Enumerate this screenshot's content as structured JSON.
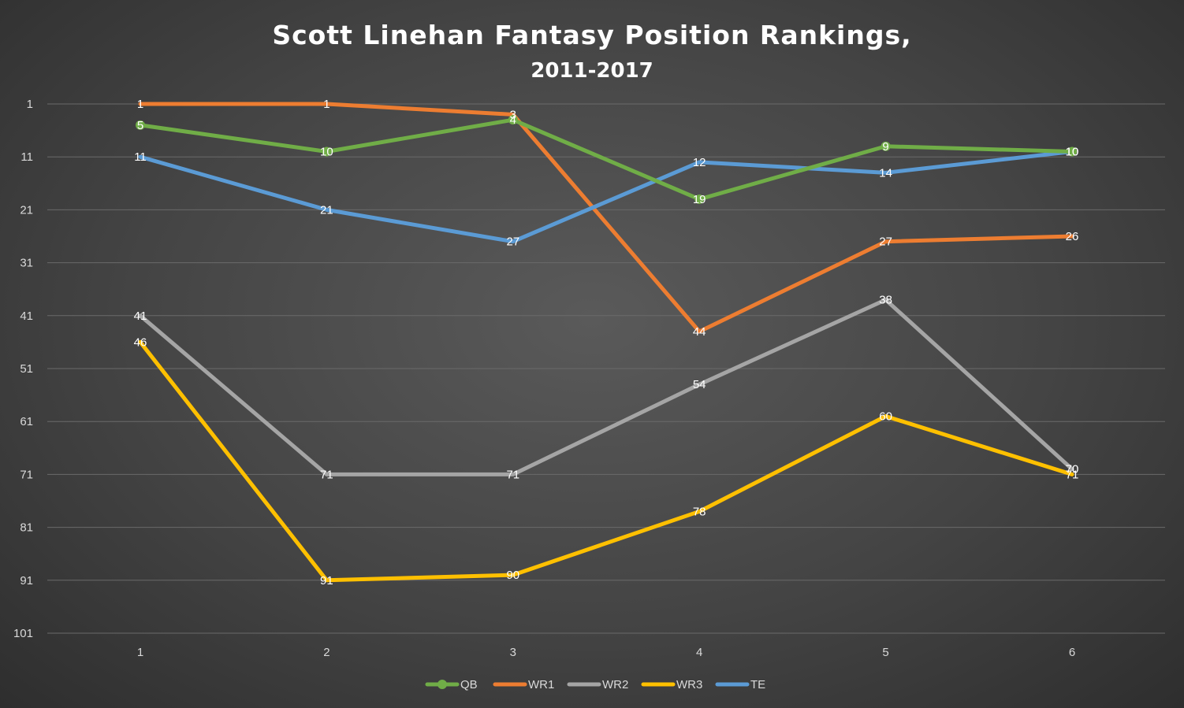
{
  "chart_data": {
    "type": "line",
    "title": "Scott Linehan Fantasy Position Rankings,",
    "subtitle": "2011-2017",
    "xlabel": "",
    "ylabel": "",
    "categories": [
      "1",
      "2",
      "3",
      "4",
      "5",
      "6"
    ],
    "y_ticks": [
      "1",
      "11",
      "21",
      "31",
      "41",
      "51",
      "61",
      "71",
      "81",
      "91",
      "101"
    ],
    "ylim": [
      1,
      101
    ],
    "y_reversed": true,
    "grid": true,
    "legend_position": "bottom",
    "series": [
      {
        "name": "QB",
        "color": "#70ad47",
        "markers": true,
        "values": [
          5,
          10,
          4,
          19,
          9,
          10
        ]
      },
      {
        "name": "WR1",
        "color": "#ed7d31",
        "markers": false,
        "values": [
          1,
          1,
          3,
          44,
          27,
          26
        ]
      },
      {
        "name": "WR2",
        "color": "#a5a5a5",
        "markers": false,
        "values": [
          41,
          71,
          71,
          54,
          38,
          70
        ]
      },
      {
        "name": "WR3",
        "color": "#ffc000",
        "markers": false,
        "values": [
          46,
          91,
          90,
          78,
          60,
          71
        ]
      },
      {
        "name": "TE",
        "color": "#5b9bd5",
        "markers": false,
        "values": [
          11,
          21,
          27,
          12,
          14,
          10
        ]
      }
    ],
    "draw_order": [
      "WR3",
      "WR2",
      "WR1",
      "TE",
      "QB"
    ]
  }
}
